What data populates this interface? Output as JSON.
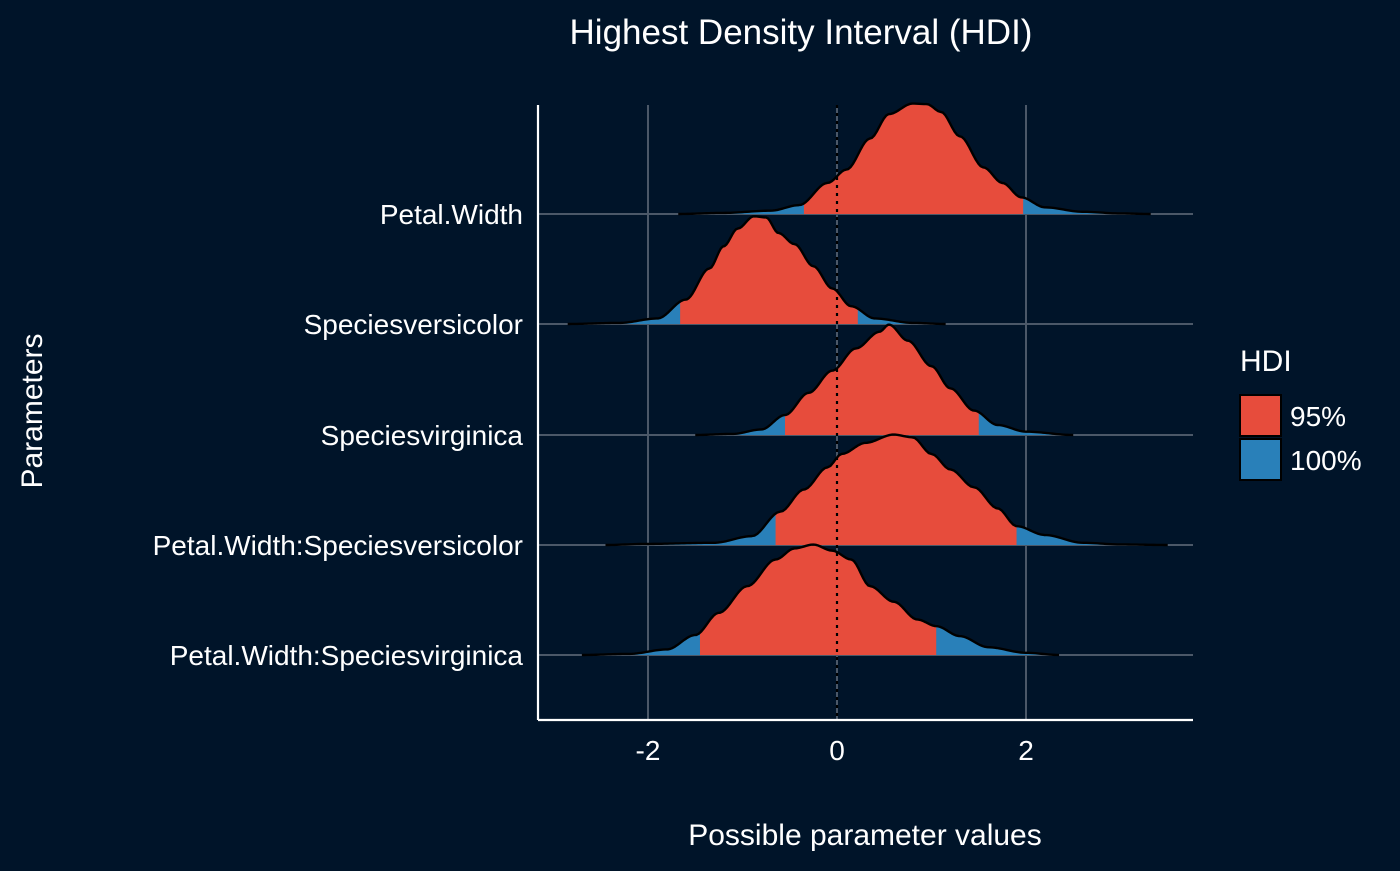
{
  "chart_data": {
    "type": "area",
    "title": "Highest Density Interval (HDI)",
    "xlabel": "Possible parameter values",
    "ylabel": "Parameters",
    "xlim": [
      -3.15,
      3.75
    ],
    "x_ticks": [
      -2,
      0,
      2
    ],
    "x_tick_labels": [
      "-2",
      "0",
      "2"
    ],
    "grid": true,
    "reference_line_x": 0,
    "legend": {
      "title": "HDI",
      "position": "right",
      "entries": [
        {
          "label": "95%",
          "color": "#E74C3C"
        },
        {
          "label": "100%",
          "color": "#2980B9"
        }
      ]
    },
    "series": [
      {
        "name": "Petal.Width",
        "hdi95": [
          -0.35,
          1.97
        ],
        "density": [
          [
            -1.68,
            0.0
          ],
          [
            -1.2,
            0.01
          ],
          [
            -0.7,
            0.03
          ],
          [
            -0.4,
            0.08
          ],
          [
            -0.1,
            0.28
          ],
          [
            0.1,
            0.4
          ],
          [
            0.35,
            0.68
          ],
          [
            0.55,
            0.9
          ],
          [
            0.8,
            0.995
          ],
          [
            0.95,
            0.99
          ],
          [
            1.1,
            0.92
          ],
          [
            1.3,
            0.7
          ],
          [
            1.55,
            0.42
          ],
          [
            1.75,
            0.28
          ],
          [
            1.95,
            0.15
          ],
          [
            2.2,
            0.06
          ],
          [
            2.6,
            0.02
          ],
          [
            3.0,
            0.005
          ],
          [
            3.32,
            0.0
          ]
        ]
      },
      {
        "name": "Speciesversicolor",
        "hdi95": [
          -1.66,
          0.22
        ],
        "density": [
          [
            -2.85,
            0.0
          ],
          [
            -2.3,
            0.01
          ],
          [
            -1.9,
            0.05
          ],
          [
            -1.6,
            0.22
          ],
          [
            -1.35,
            0.5
          ],
          [
            -1.2,
            0.7
          ],
          [
            -1.05,
            0.86
          ],
          [
            -0.88,
            0.97
          ],
          [
            -0.75,
            0.96
          ],
          [
            -0.62,
            0.82
          ],
          [
            -0.45,
            0.72
          ],
          [
            -0.25,
            0.52
          ],
          [
            -0.05,
            0.32
          ],
          [
            0.15,
            0.16
          ],
          [
            0.4,
            0.05
          ],
          [
            0.8,
            0.01
          ],
          [
            1.15,
            0.0
          ]
        ]
      },
      {
        "name": "Speciesvirginica",
        "hdi95": [
          -0.55,
          1.5
        ],
        "density": [
          [
            -1.5,
            0.0
          ],
          [
            -1.1,
            0.01
          ],
          [
            -0.8,
            0.05
          ],
          [
            -0.55,
            0.18
          ],
          [
            -0.3,
            0.38
          ],
          [
            -0.05,
            0.58
          ],
          [
            0.2,
            0.78
          ],
          [
            0.45,
            0.93
          ],
          [
            0.55,
            0.995
          ],
          [
            0.75,
            0.85
          ],
          [
            1.0,
            0.62
          ],
          [
            1.2,
            0.42
          ],
          [
            1.45,
            0.22
          ],
          [
            1.7,
            0.09
          ],
          [
            2.0,
            0.03
          ],
          [
            2.5,
            0.0
          ]
        ]
      },
      {
        "name": "Petal.Width:Speciesversicolor",
        "hdi95": [
          -0.65,
          1.9
        ],
        "density": [
          [
            -2.45,
            0.0
          ],
          [
            -2.0,
            0.01
          ],
          [
            -1.3,
            0.02
          ],
          [
            -0.9,
            0.08
          ],
          [
            -0.6,
            0.3
          ],
          [
            -0.35,
            0.5
          ],
          [
            -0.1,
            0.7
          ],
          [
            0.05,
            0.82
          ],
          [
            0.3,
            0.92
          ],
          [
            0.6,
            0.995
          ],
          [
            0.8,
            0.97
          ],
          [
            1.0,
            0.82
          ],
          [
            1.2,
            0.68
          ],
          [
            1.45,
            0.52
          ],
          [
            1.7,
            0.33
          ],
          [
            1.9,
            0.17
          ],
          [
            2.2,
            0.09
          ],
          [
            2.6,
            0.02
          ],
          [
            3.0,
            0.005
          ],
          [
            3.5,
            0.0
          ]
        ]
      },
      {
        "name": "Petal.Width:Speciesvirginica",
        "hdi95": [
          -1.45,
          1.05
        ],
        "density": [
          [
            -2.7,
            0.0
          ],
          [
            -2.2,
            0.01
          ],
          [
            -1.8,
            0.05
          ],
          [
            -1.5,
            0.18
          ],
          [
            -1.25,
            0.38
          ],
          [
            -0.95,
            0.62
          ],
          [
            -0.65,
            0.86
          ],
          [
            -0.45,
            0.96
          ],
          [
            -0.25,
            0.995
          ],
          [
            -0.05,
            0.94
          ],
          [
            0.15,
            0.86
          ],
          [
            0.35,
            0.62
          ],
          [
            0.6,
            0.48
          ],
          [
            0.85,
            0.32
          ],
          [
            1.05,
            0.26
          ],
          [
            1.3,
            0.17
          ],
          [
            1.6,
            0.07
          ],
          [
            2.0,
            0.02
          ],
          [
            2.35,
            0.0
          ]
        ]
      }
    ]
  }
}
